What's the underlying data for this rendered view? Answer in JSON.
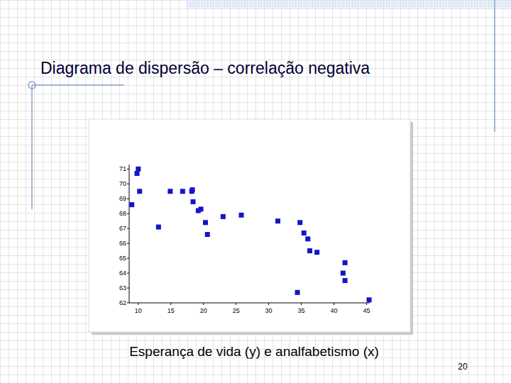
{
  "chart_data": {
    "type": "scatter",
    "title": "Diagrama de dispersão – correlação negativa",
    "caption": "Esperança de vida (y) e analfabetismo (x)",
    "x": [
      10,
      9.8,
      10.2,
      9.0,
      13.1,
      14.9,
      16.8,
      18.2,
      18.3,
      18.4,
      19.2,
      19.6,
      20.3,
      20.6,
      23.0,
      25.8,
      31.4,
      34.8,
      35.4,
      36.0,
      36.3,
      37.4,
      34.4,
      41.7,
      41.4,
      41.7,
      45.4
    ],
    "values": [
      71.0,
      70.7,
      69.5,
      68.6,
      67.1,
      69.5,
      69.5,
      69.5,
      69.6,
      68.8,
      68.2,
      68.3,
      67.4,
      66.6,
      67.8,
      67.9,
      67.5,
      67.4,
      66.7,
      66.3,
      65.5,
      65.4,
      62.7,
      64.7,
      64.0,
      63.5,
      62.2
    ],
    "xlim": [
      8.6,
      45.5
    ],
    "ylim": [
      62,
      71.3
    ],
    "xticks": [
      10,
      15,
      20,
      25,
      30,
      35,
      40,
      45
    ],
    "yticks": [
      62,
      63,
      64,
      65,
      66,
      67,
      68,
      69,
      70,
      71
    ],
    "color": "#1414c8",
    "marker": "square",
    "grid": false
  },
  "page_number": "20"
}
